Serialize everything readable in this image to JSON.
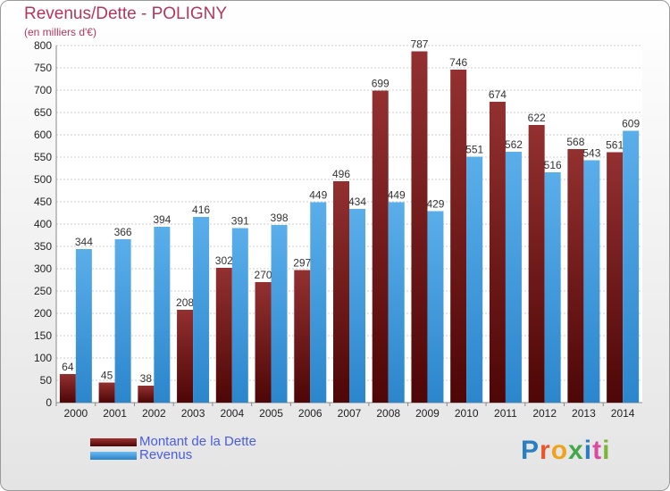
{
  "chart_data": {
    "type": "bar",
    "title": "Revenus/Dette - POLIGNY",
    "subtitle": "(en milliers d'€)",
    "categories": [
      "2000",
      "2001",
      "2002",
      "2003",
      "2004",
      "2005",
      "2006",
      "2007",
      "2008",
      "2009",
      "2010",
      "2011",
      "2012",
      "2013",
      "2014"
    ],
    "series": [
      {
        "name": "Montant de la Dette",
        "color": "#7a1616",
        "values": [
          64,
          45,
          38,
          208,
          302,
          270,
          297,
          496,
          699,
          787,
          746,
          674,
          622,
          568,
          561
        ],
        "labels": [
          "64",
          "45",
          "38",
          "208",
          "302",
          "270",
          "297",
          "496",
          "699",
          "787",
          "746",
          "674",
          "622",
          "568",
          "561"
        ]
      },
      {
        "name": "Revenus",
        "color": "#3d9be2",
        "values": [
          344,
          366,
          394,
          416,
          391,
          398,
          449,
          434,
          449,
          429,
          551,
          562,
          516,
          543,
          609
        ],
        "labels": [
          "344",
          "366",
          "394",
          "416",
          "391",
          "398",
          "449",
          "434",
          "449",
          "429",
          "551",
          "562",
          "516",
          "543",
          "609"
        ]
      }
    ],
    "yticks": [
      0,
      50,
      100,
      150,
      200,
      250,
      300,
      350,
      400,
      450,
      500,
      550,
      600,
      650,
      700,
      750,
      800
    ],
    "ylim": [
      0,
      800
    ],
    "grid": true,
    "legend_position": "bottom-left"
  },
  "logo": {
    "letters": [
      "P",
      "r",
      "o",
      "x",
      "i",
      "t",
      "i"
    ]
  }
}
